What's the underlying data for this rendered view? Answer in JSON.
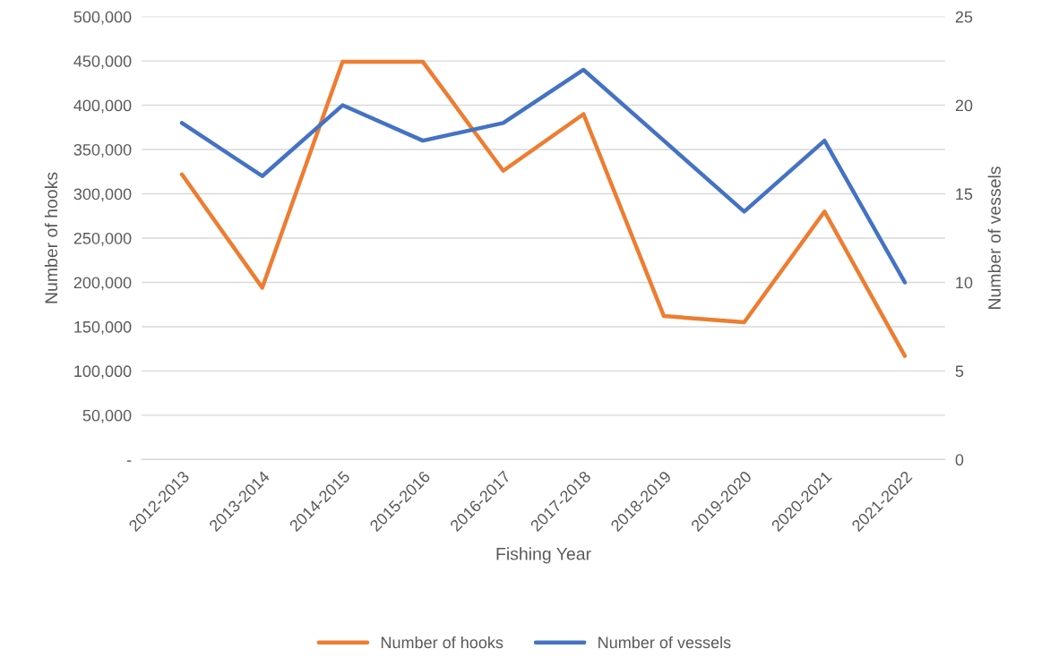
{
  "chart_data": {
    "type": "line",
    "xlabel": "Fishing Year",
    "ylabel": "Number of hooks",
    "y2label": "Number of vessels",
    "categories": [
      "2012-2013",
      "2013-2014",
      "2014-2015",
      "2015-2016",
      "2016-2017",
      "2017-2018",
      "2018-2019",
      "2019-2020",
      "2020-2021",
      "2021-2022"
    ],
    "series": [
      {
        "name": "Number of hooks",
        "color": "#ed7d31",
        "values": [
          322000,
          194000,
          449000,
          449000,
          326000,
          390000,
          162000,
          155000,
          280000,
          117000
        ]
      },
      {
        "name": "Number of vessels",
        "color": "#4472c4",
        "axis": "y2",
        "values": [
          19,
          16,
          20,
          18,
          19,
          22,
          18,
          14,
          18,
          10
        ]
      }
    ],
    "ylim": [
      0,
      500000
    ],
    "yticks": [
      {
        "value": 0,
        "label": "-"
      },
      {
        "value": 50000,
        "label": "50,000"
      },
      {
        "value": 100000,
        "label": "100,000"
      },
      {
        "value": 150000,
        "label": "150,000"
      },
      {
        "value": 200000,
        "label": "200,000"
      },
      {
        "value": 250000,
        "label": "250,000"
      },
      {
        "value": 300000,
        "label": "300,000"
      },
      {
        "value": 350000,
        "label": "350,000"
      },
      {
        "value": 400000,
        "label": "400,000"
      },
      {
        "value": 450000,
        "label": "450,000"
      },
      {
        "value": 500000,
        "label": "500,000"
      }
    ],
    "y2lim": [
      0,
      25
    ],
    "y2ticks": [
      0,
      5,
      10,
      15,
      20,
      25
    ],
    "grid": "y",
    "legend": "bottom",
    "marker": "none",
    "line_style": "solid"
  }
}
